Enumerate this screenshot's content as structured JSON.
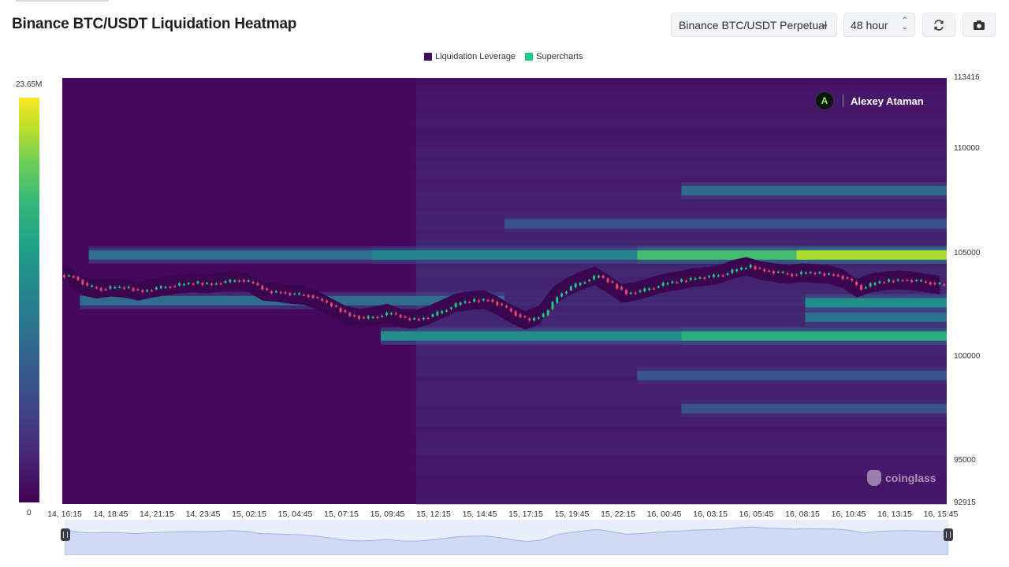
{
  "header": {
    "title": "Binance BTC/USDT Liquidation Heatmap",
    "pair_select": "Binance BTC/USDT Perpetual",
    "range_select": "48 hour",
    "refresh_icon": "refresh-icon",
    "camera_icon": "camera-icon"
  },
  "legend": {
    "items": [
      {
        "label": "Liquidation Leverage",
        "color": "#3b0f5a"
      },
      {
        "label": "Supercharts",
        "color": "#22c983"
      }
    ]
  },
  "colorbar": {
    "max_label": "23.65M",
    "min_label": "0"
  },
  "watermark": {
    "author": "Alexey Ataman",
    "brand": "coinglass"
  },
  "chart_data": {
    "type": "heatmap",
    "title": "Binance BTC/USDT Liquidation Heatmap",
    "y_ticks": [
      "113416",
      "110000",
      "105000",
      "100000",
      "95000",
      "92915"
    ],
    "ylim": [
      92915,
      113416
    ],
    "x_ticks": [
      "14, 16:15",
      "14, 18:45",
      "14, 21:15",
      "14, 23:45",
      "15, 02:15",
      "15, 04:45",
      "15, 07:15",
      "15, 09:45",
      "15, 12:15",
      "15, 14:45",
      "15, 17:15",
      "15, 19:45",
      "15, 22:15",
      "16, 00:45",
      "16, 03:15",
      "16, 05:45",
      "16, 08:15",
      "16, 10:45",
      "16, 13:15",
      "16, 15:45"
    ],
    "colorscale": {
      "min": 0,
      "max": 23650000,
      "min_label": "0",
      "max_label": "23.65M"
    },
    "liquidation_bands": [
      {
        "price": 108000,
        "start": 0.7,
        "end": 1.0,
        "intensity": 0.4
      },
      {
        "price": 106400,
        "start": 0.5,
        "end": 1.0,
        "intensity": 0.28
      },
      {
        "price": 104900,
        "start": 0.03,
        "end": 0.35,
        "intensity": 0.42
      },
      {
        "price": 104900,
        "start": 0.35,
        "end": 0.65,
        "intensity": 0.52
      },
      {
        "price": 104900,
        "start": 0.65,
        "end": 0.83,
        "intensity": 0.78
      },
      {
        "price": 104900,
        "start": 0.83,
        "end": 1.0,
        "intensity": 0.92
      },
      {
        "price": 102700,
        "start": 0.02,
        "end": 0.5,
        "intensity": 0.4
      },
      {
        "price": 102600,
        "start": 0.84,
        "end": 1.0,
        "intensity": 0.55
      },
      {
        "price": 101900,
        "start": 0.84,
        "end": 1.0,
        "intensity": 0.42
      },
      {
        "price": 101000,
        "start": 0.36,
        "end": 0.7,
        "intensity": 0.55
      },
      {
        "price": 101000,
        "start": 0.7,
        "end": 1.0,
        "intensity": 0.7
      },
      {
        "price": 99100,
        "start": 0.65,
        "end": 1.0,
        "intensity": 0.3
      },
      {
        "price": 97500,
        "start": 0.7,
        "end": 1.0,
        "intensity": 0.28
      }
    ],
    "price_series": [
      103850,
      103400,
      103250,
      103350,
      103300,
      103150,
      103300,
      103400,
      103500,
      103550,
      103500,
      103600,
      103700,
      103550,
      103150,
      103100,
      103000,
      102950,
      102700,
      102350,
      102000,
      101850,
      101950,
      102100,
      101850,
      101800,
      102000,
      102300,
      102600,
      102700,
      102750,
      102450,
      102050,
      101750,
      102000,
      102900,
      103350,
      103650,
      103900,
      103500,
      103050,
      103150,
      103350,
      103550,
      103650,
      103800,
      103850,
      103950,
      104200,
      104350,
      104150,
      104050,
      103950,
      104050,
      104000,
      103950,
      103750,
      103300,
      103550,
      103650,
      103700,
      103650,
      103550,
      103450
    ]
  }
}
